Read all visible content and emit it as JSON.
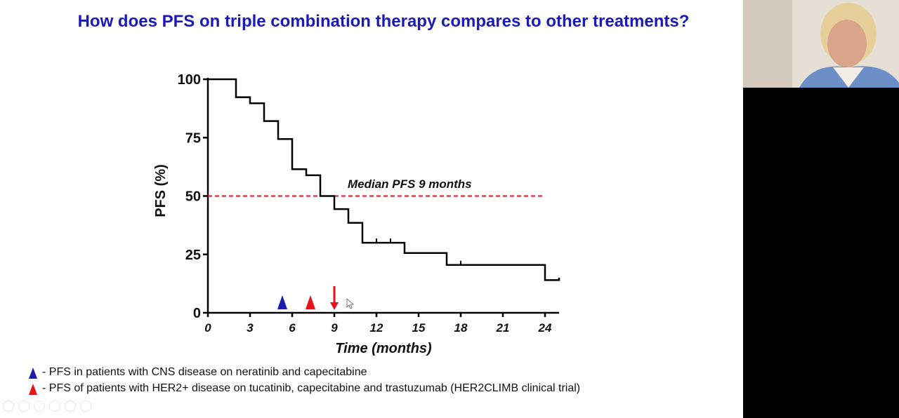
{
  "slide": {
    "title": "How does PFS on triple combination therapy compares to other treatments?",
    "legend": [
      {
        "symbol": "blue-triangle-icon",
        "color": "#1b1bb0",
        "text": " - PFS in patients with CNS disease on neratinib and capecitabine"
      },
      {
        "symbol": "red-triangle-icon",
        "color": "#e8121b",
        "text": " - PFS of patients with HER2+ disease on tucatinib, capecitabine and trastuzumab (HER2CLIMB clinical trial)"
      }
    ]
  },
  "chart_data": {
    "type": "line",
    "step": true,
    "xlabel": "Time (months)",
    "ylabel": "PFS (%)",
    "xlim": [
      0,
      25
    ],
    "ylim": [
      0,
      100
    ],
    "xticks": [
      0,
      3,
      6,
      9,
      12,
      15,
      18,
      21,
      24
    ],
    "yticks": [
      0,
      25,
      50,
      75,
      100
    ],
    "series": [
      {
        "color": "#000000",
        "x": [
          0,
          2,
          3,
          4,
          5,
          6,
          7,
          8,
          9,
          10,
          11,
          14,
          17,
          24,
          25
        ],
        "y": [
          100,
          92.3,
          89.7,
          82.1,
          74.4,
          61.5,
          58.9,
          50,
          44.4,
          38.5,
          30,
          25.6,
          20.5,
          14,
          15
        ],
        "censor_x": [
          12,
          13,
          18
        ]
      }
    ],
    "reference_line": {
      "y": 50,
      "color": "#e8121b",
      "style": "dashed",
      "label": "Median PFS 9 months"
    },
    "markers": [
      {
        "x": 5.3,
        "shape": "triangle",
        "color": "#1b1bb0"
      },
      {
        "x": 7.3,
        "shape": "triangle",
        "color": "#e8121b"
      },
      {
        "x": 9,
        "shape": "arrow-down",
        "color": "#e8121b"
      }
    ]
  },
  "webcam": {
    "description": "presenter-video"
  }
}
